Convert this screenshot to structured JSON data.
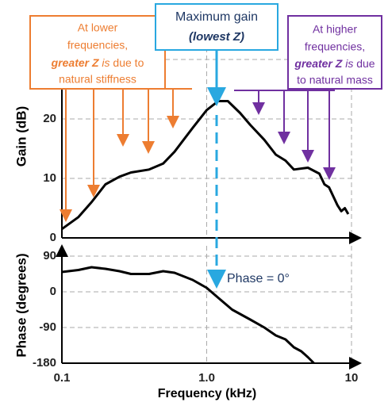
{
  "chart_data": [
    {
      "type": "line",
      "ylabel": "Gain (dB)",
      "x": [
        0.1,
        0.13,
        0.16,
        0.2,
        0.25,
        0.3,
        0.4,
        0.5,
        0.6,
        0.8,
        1.0,
        1.2,
        1.4,
        1.7,
        2.0,
        2.5,
        3.0,
        3.5,
        4.0,
        5.0,
        6.0,
        6.5,
        7.0,
        8.0,
        8.5,
        9.0,
        9.5
      ],
      "series": [
        {
          "name": "Gain",
          "color": "#000000",
          "values": [
            1.5,
            3.5,
            6,
            9,
            10.3,
            11,
            11.5,
            12.5,
            14.5,
            18.5,
            21.5,
            23,
            23,
            21,
            19,
            16.5,
            14,
            13,
            11.5,
            11.8,
            10.8,
            9,
            8.5,
            5.5,
            4.5,
            5,
            4
          ]
        }
      ],
      "ylim": [
        0,
        30
      ],
      "yticks": [
        0,
        10,
        20
      ],
      "grid": true,
      "log_x": true,
      "annotations": {
        "low": [
          "At lower",
          "frequencies,",
          "greater Z",
          " is",
          " due to",
          "natural stiffness"
        ],
        "max": [
          "Maximum gain",
          "(lowest Z)"
        ],
        "high": [
          "At higher",
          "frequencies,",
          "greater Z",
          " is",
          " due",
          "to natural mass"
        ]
      }
    },
    {
      "type": "line",
      "ylabel": "Phase (degrees)",
      "xlabel": "Frequency (kHz)",
      "x": [
        0.1,
        0.13,
        0.16,
        0.2,
        0.25,
        0.3,
        0.4,
        0.5,
        0.6,
        0.8,
        1.0,
        1.2,
        1.5,
        2.0,
        2.5,
        3.0,
        3.5,
        4.0,
        4.5,
        5.0,
        5.5
      ],
      "series": [
        {
          "name": "Phase",
          "color": "#000000",
          "values": [
            50,
            55,
            62,
            58,
            52,
            45,
            45,
            52,
            48,
            30,
            10,
            -15,
            -45,
            -70,
            -90,
            -110,
            -120,
            -140,
            -150,
            -165,
            -180
          ]
        }
      ],
      "xlim": [
        0.1,
        10
      ],
      "xticks": [
        0.1,
        {
          "value": 1,
          "label": "1.0"
        },
        10
      ],
      "ylim": [
        -180,
        90
      ],
      "yticks": [
        -180,
        -90,
        0,
        90
      ],
      "grid": true,
      "log_x": true,
      "annotation": "Phase = 0°"
    }
  ]
}
